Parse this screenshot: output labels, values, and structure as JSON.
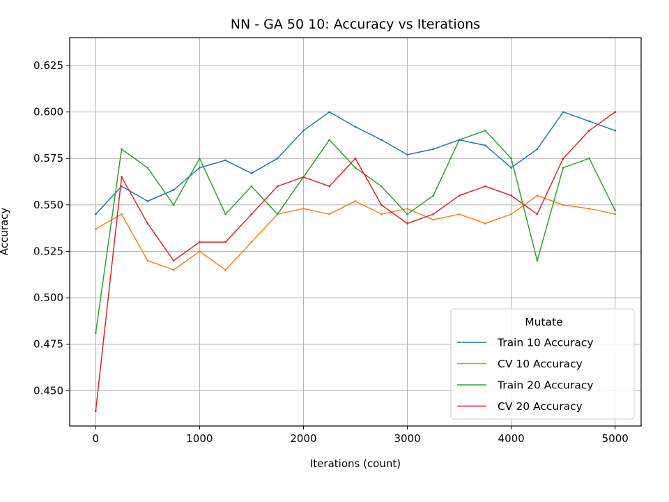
{
  "chart_data": {
    "type": "line",
    "title": "NN - GA 50 10: Accuracy vs Iterations",
    "xlabel": "Iterations (count)",
    "ylabel": "Accuracy",
    "xlim": [
      -250,
      5250
    ],
    "ylim": [
      0.431,
      0.64
    ],
    "xticks": [
      0,
      1000,
      2000,
      3000,
      4000,
      5000
    ],
    "yticks": [
      0.45,
      0.475,
      0.5,
      0.525,
      0.55,
      0.575,
      0.6,
      0.625
    ],
    "grid": true,
    "legend": {
      "title": "Mutate",
      "placement": "bottom-right"
    },
    "x": [
      0,
      250,
      500,
      750,
      1000,
      1250,
      1500,
      1750,
      2000,
      2250,
      2500,
      2750,
      3000,
      3250,
      3500,
      3750,
      4000,
      4250,
      4500,
      4750,
      5000
    ],
    "series": [
      {
        "name": "Train 10 Accuracy",
        "color": "#1f77b4",
        "values": [
          0.545,
          0.56,
          0.552,
          0.558,
          0.57,
          0.574,
          0.567,
          0.575,
          0.59,
          0.6,
          0.592,
          0.585,
          0.577,
          0.58,
          0.585,
          0.582,
          0.57,
          0.58,
          0.6,
          0.595,
          0.59
        ]
      },
      {
        "name": "CV 10 Accuracy",
        "color": "#ff7f0e",
        "values": [
          0.537,
          0.545,
          0.52,
          0.515,
          0.525,
          0.515,
          0.53,
          0.545,
          0.548,
          0.545,
          0.552,
          0.545,
          0.548,
          0.542,
          0.545,
          0.54,
          0.545,
          0.555,
          0.55,
          0.548,
          0.545
        ]
      },
      {
        "name": "Train 20 Accuracy",
        "color": "#2ca02c",
        "values": [
          0.481,
          0.58,
          0.57,
          0.55,
          0.575,
          0.545,
          0.56,
          0.545,
          0.565,
          0.585,
          0.57,
          0.56,
          0.545,
          0.555,
          0.585,
          0.59,
          0.575,
          0.52,
          0.57,
          0.575,
          0.547
        ]
      },
      {
        "name": "CV 20 Accuracy",
        "color": "#d62728",
        "values": [
          0.439,
          0.565,
          0.54,
          0.52,
          0.53,
          0.53,
          0.545,
          0.56,
          0.565,
          0.56,
          0.575,
          0.55,
          0.54,
          0.545,
          0.555,
          0.56,
          0.555,
          0.545,
          0.575,
          0.59,
          0.6
        ]
      }
    ]
  }
}
